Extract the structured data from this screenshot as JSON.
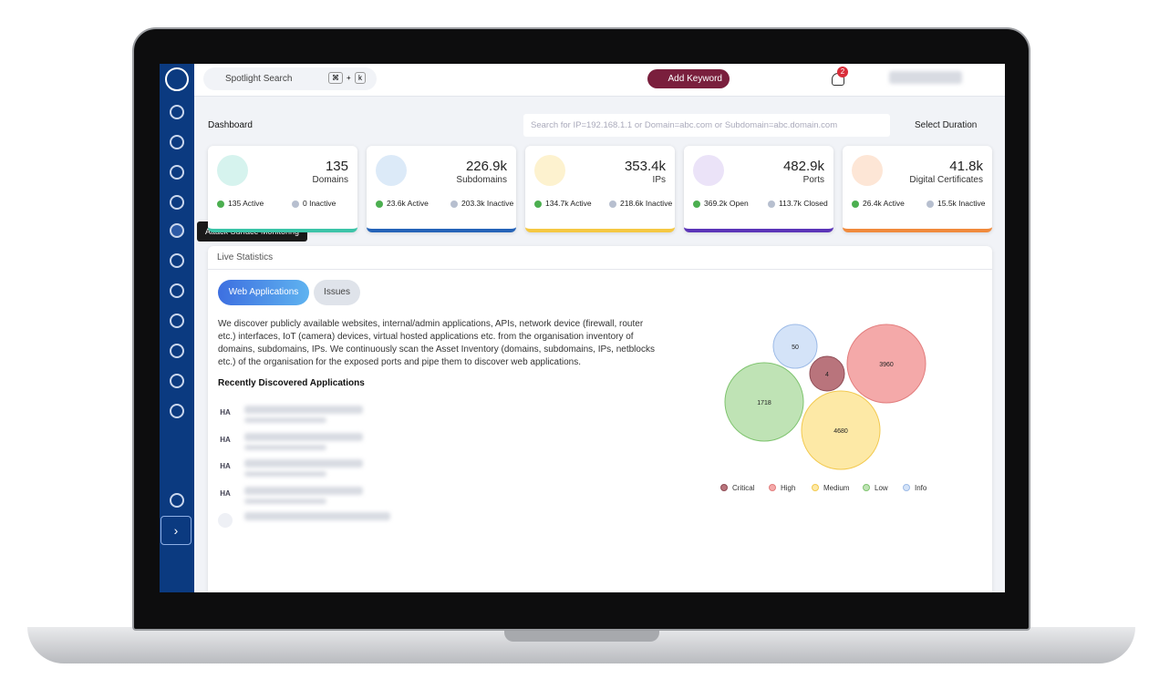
{
  "search": {
    "placeholder": "Spotlight Search",
    "keys": [
      "⌘",
      "+",
      "k"
    ]
  },
  "topbar": {
    "add_keyword": "Add Keyword",
    "notifications": "2"
  },
  "tooltip": "Attack Surface Monitoring",
  "dashboard": {
    "title": "Dashboard",
    "search_placeholder": "Search for IP=192.168.1.1 or Domain=abc.com or Subdomain=abc.domain.com",
    "duration": "Select Duration"
  },
  "cards": [
    {
      "value": "135",
      "label": "Domains",
      "stats": [
        "135 Active",
        "0 Inactive"
      ],
      "color": "#3cc4a8",
      "icon_bg": "#d6f3ee"
    },
    {
      "value": "226.9k",
      "label": "Subdomains",
      "stats": [
        "23.6k Active",
        "203.3k Inactive"
      ],
      "color": "#2563b8",
      "icon_bg": "#dceaf8"
    },
    {
      "value": "353.4k",
      "label": "IPs",
      "stats": [
        "134.7k Active",
        "218.6k Inactive"
      ],
      "color": "#f5c842",
      "icon_bg": "#fdf2cf"
    },
    {
      "value": "482.9k",
      "label": "Ports",
      "stats": [
        "369.2k Open",
        "113.7k Closed"
      ],
      "color": "#5b34b8",
      "icon_bg": "#ebe3f8"
    },
    {
      "value": "41.8k",
      "label": "Digital Certificates",
      "stats": [
        "26.4k Active",
        "15.5k Inactive"
      ],
      "color": "#f08a3c",
      "icon_bg": "#fde6d6"
    }
  ],
  "live": {
    "title": "Live Statistics",
    "tabs": [
      "Web Applications",
      "Issues"
    ],
    "description": "We discover publicly available websites, internal/admin applications, APIs, network device (firewall, router etc.) interfaces, IoT (camera) devices, virtual hosted applications etc. from the organisation inventory of domains, subdomains, IPs. We continuously scan the Asset Inventory (domains, subdomains, IPs, netblocks etc.) of the organisation for the exposed ports and pipe them to discover web applications.",
    "recent_title": "Recently Discovered Applications",
    "apps": [
      "HA",
      "HA",
      "HA",
      "HA"
    ]
  },
  "bubbles": [
    {
      "name": "Critical",
      "value": 4,
      "fill": "#b9747c",
      "stroke": "#8e4c55"
    },
    {
      "name": "High",
      "value": 3960,
      "fill": "#f4a9a9",
      "stroke": "#e27d7d"
    },
    {
      "name": "Medium",
      "value": 4680,
      "fill": "#fde9a6",
      "stroke": "#f2c94f"
    },
    {
      "name": "Low",
      "value": 1718,
      "fill": "#bfe3b5",
      "stroke": "#7fc46f"
    },
    {
      "name": "Info",
      "value": 50,
      "fill": "#d4e3f8",
      "stroke": "#9dbbe7"
    }
  ]
}
